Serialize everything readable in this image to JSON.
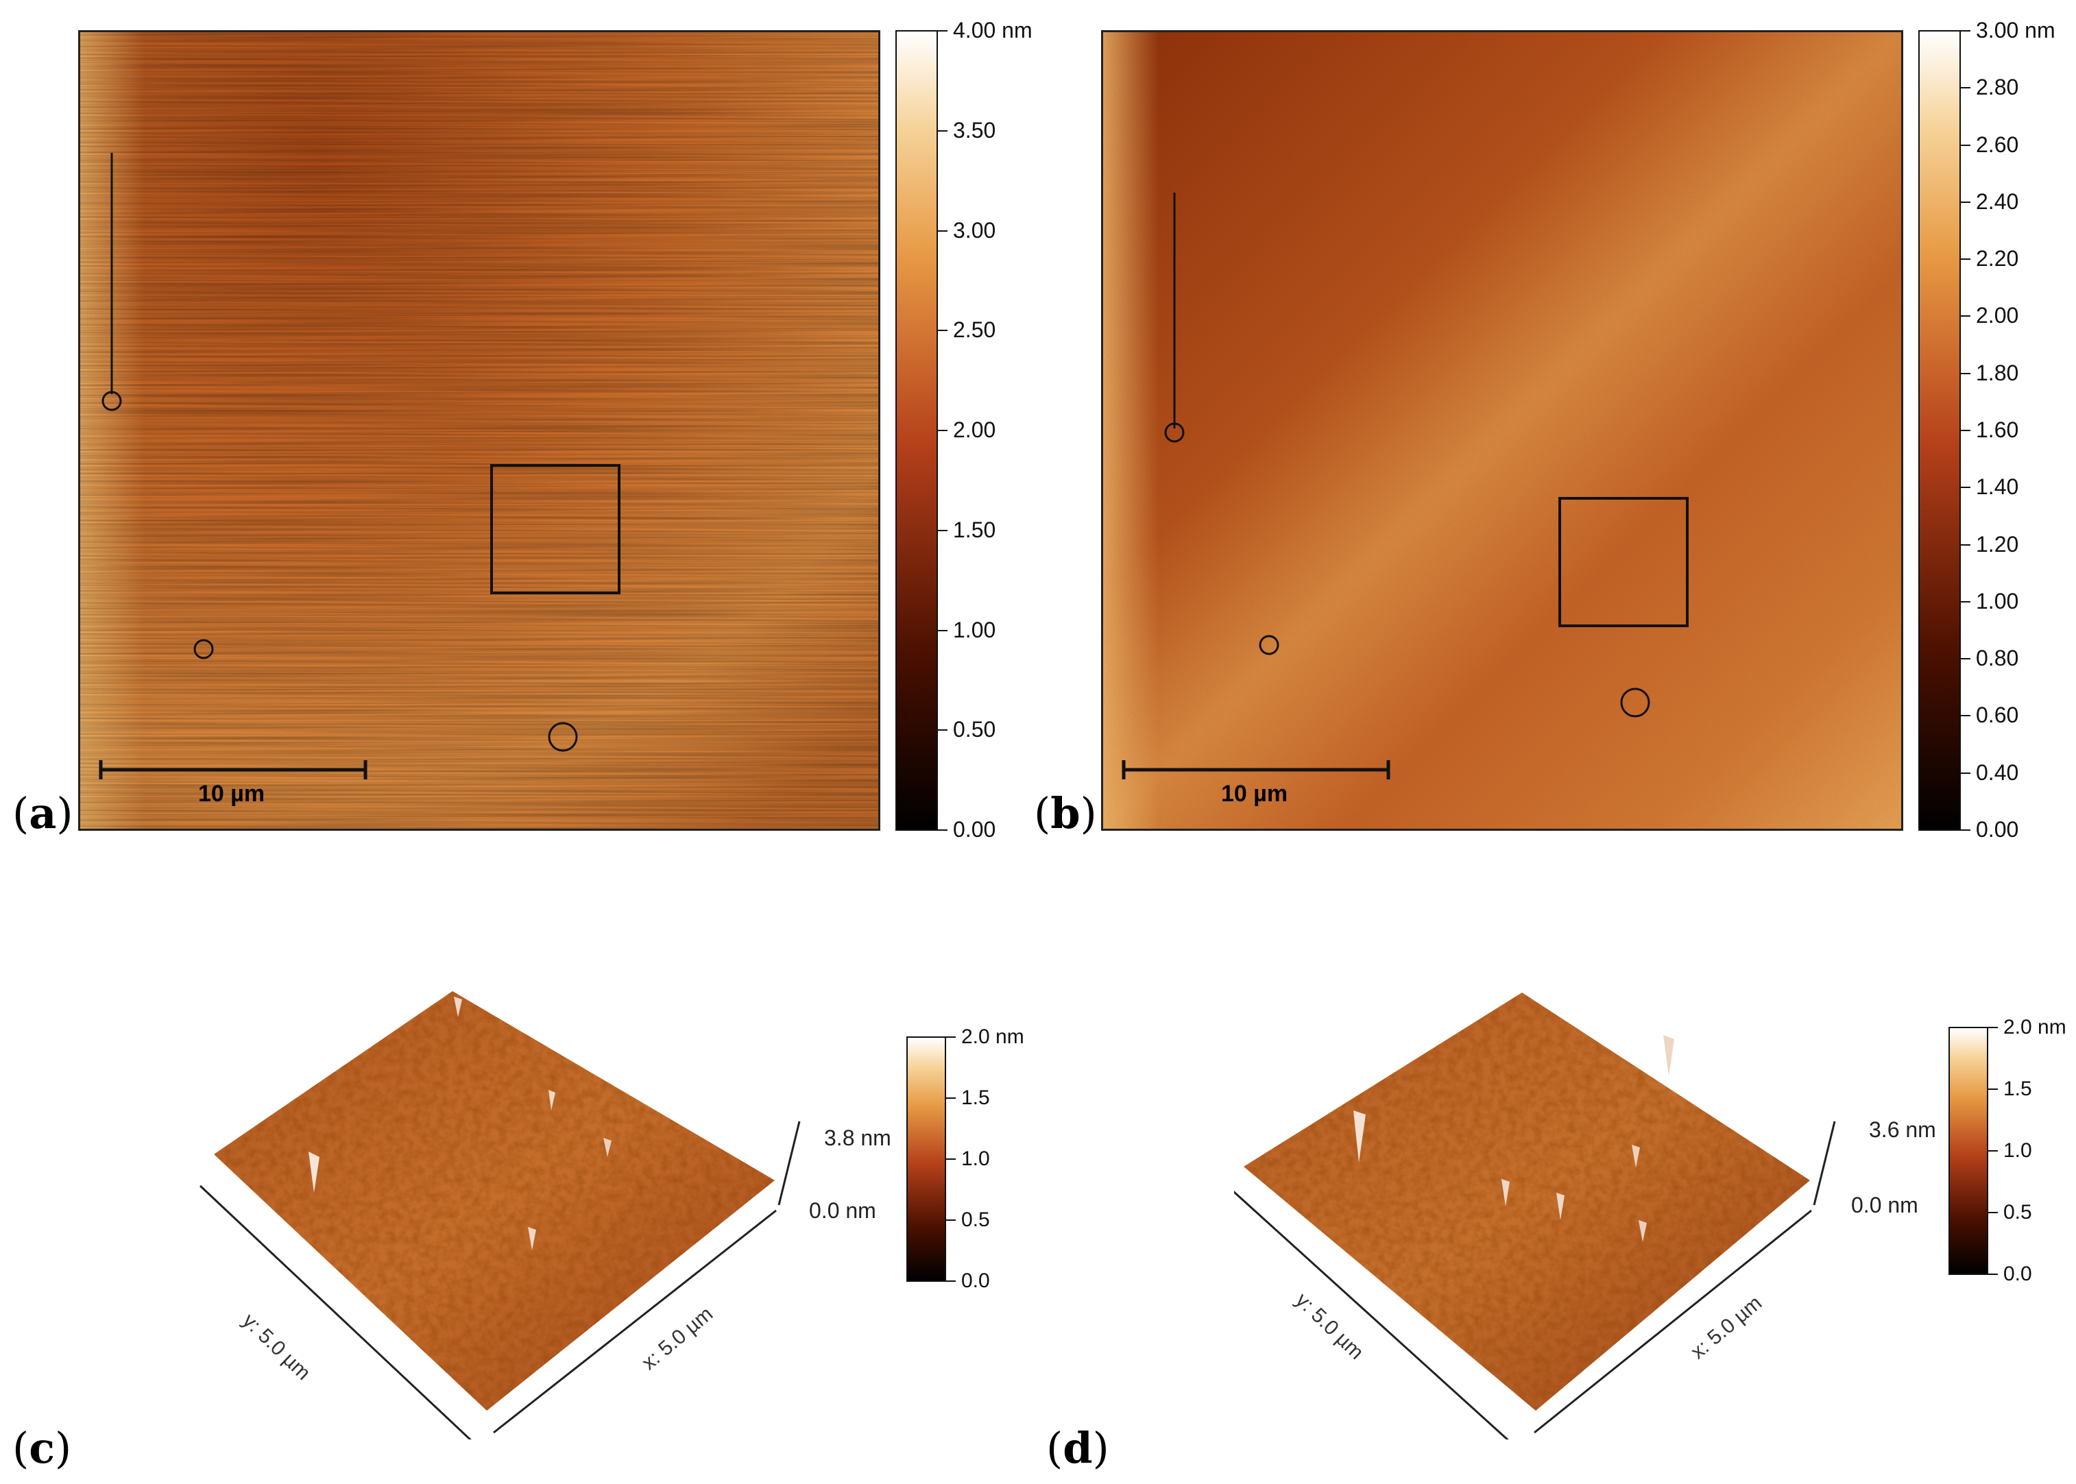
{
  "panels": {
    "a": {
      "label": "a",
      "scale_bar": "10 µm"
    },
    "b": {
      "label": "b",
      "scale_bar": "10 µm"
    },
    "c": {
      "label": "c",
      "axis_y": "y: 5.0 µm",
      "axis_x": "x: 5.0 µm",
      "z_top": "3.8 nm",
      "z_bottom": "0.0 nm"
    },
    "d": {
      "label": "d",
      "axis_y": "y: 5.0 µm",
      "axis_x": "x: 5.0 µm",
      "z_top": "3.6 nm",
      "z_bottom": "0.0 nm"
    }
  },
  "colorbars": {
    "a": [
      "4.00 nm",
      "3.50",
      "3.00",
      "2.50",
      "2.00",
      "1.50",
      "1.00",
      "0.50",
      "0.00"
    ],
    "b": [
      "3.00 nm",
      "2.80",
      "2.60",
      "2.40",
      "2.20",
      "2.00",
      "1.80",
      "1.60",
      "1.40",
      "1.20",
      "1.00",
      "0.80",
      "0.60",
      "0.40",
      "0.00"
    ],
    "c": [
      "2.0 nm",
      "1.5",
      "1.0",
      "0.5",
      "0.0"
    ],
    "d": [
      "2.0 nm",
      "1.5",
      "1.0",
      "0.5",
      "0.0"
    ]
  },
  "colors": {
    "afm_dark": "#1a0500",
    "afm_mid": "#b4521c",
    "afm_light": "#f3c07a",
    "afm_white": "#fffaf2"
  }
}
